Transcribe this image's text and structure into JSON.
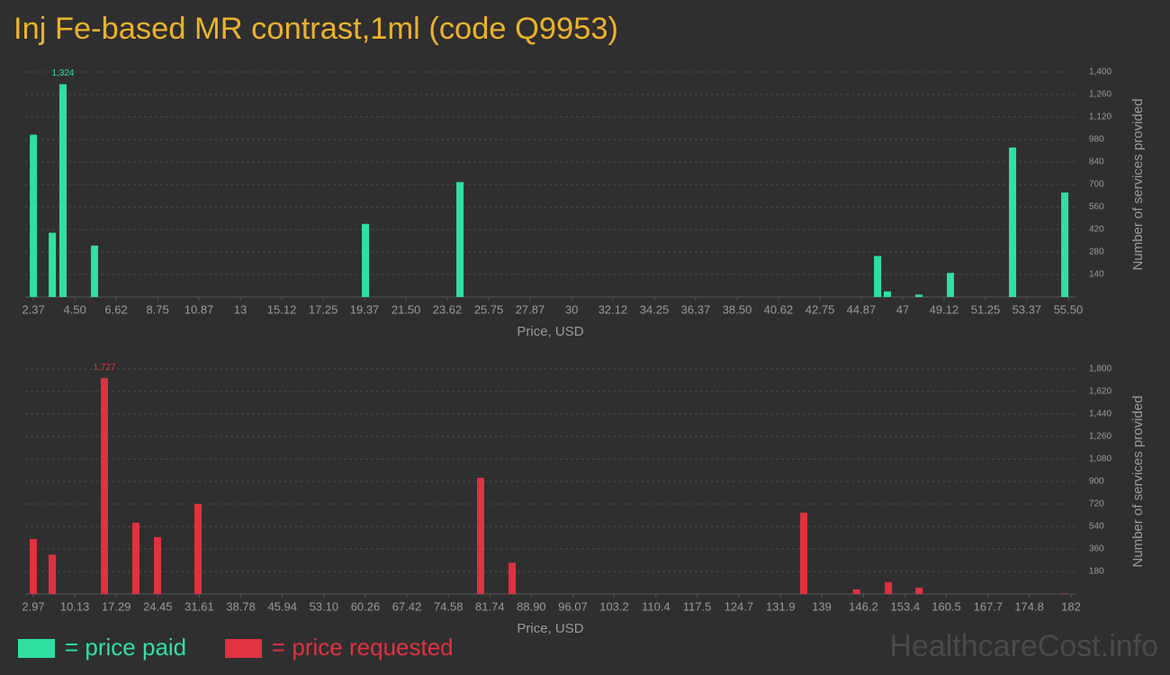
{
  "title": "Inj Fe-based MR contrast,1ml (code Q9953)",
  "watermark": "HealthcareCost.info",
  "chart_data": [
    {
      "type": "bar",
      "xlabel": "Price, USD",
      "ylabel": "Number of services provided",
      "x": [
        2.37,
        3.34,
        3.89,
        5.51,
        19.42,
        24.27,
        45.71,
        46.21,
        47.83,
        49.45,
        52.64,
        55.32
      ],
      "series": [
        {
          "name": "= price paid",
          "color": "#2fe0a0",
          "values": [
            1010,
            400,
            1324,
            320,
            455,
            715,
            255,
            35,
            15,
            150,
            930,
            650
          ],
          "value_labels": [
            null,
            null,
            "1,324",
            null,
            null,
            null,
            null,
            null,
            null,
            null,
            null,
            null
          ]
        }
      ],
      "xlim": [
        1.95,
        55.87
      ],
      "xticks": [
        2.37,
        {
          "value": 4.5,
          "label": "4.50"
        },
        6.62,
        8.75,
        10.87,
        13,
        15.12,
        17.25,
        19.37,
        {
          "value": 21.5,
          "label": "21.50"
        },
        23.62,
        25.75,
        27.87,
        30,
        32.12,
        34.25,
        36.37,
        {
          "value": 38.5,
          "label": "38.50"
        },
        40.62,
        42.75,
        44.87,
        47,
        49.12,
        51.25,
        53.37,
        {
          "value": 55.5,
          "label": "55.50"
        }
      ],
      "ylim": [
        0,
        1400
      ],
      "yticks": [
        140,
        280,
        420,
        560,
        700,
        840,
        980,
        {
          "value": 1120,
          "label": "1,120"
        },
        {
          "value": 1260,
          "label": "1,260"
        },
        {
          "value": 1400,
          "label": "1,400"
        }
      ],
      "grid": true
    },
    {
      "type": "bar",
      "xlabel": "Price, USD",
      "ylabel": "Number of services provided",
      "x": [
        2.97,
        6.23,
        15.24,
        20.67,
        24.4,
        31.39,
        80.14,
        85.58,
        135.89,
        145.0,
        150.5,
        155.8,
        180.9
      ],
      "series": [
        {
          "name": "= price requested",
          "color": "#e0323f",
          "values": [
            440,
            315,
            1727,
            570,
            455,
            720,
            930,
            250,
            650,
            36,
            95,
            50,
            5
          ],
          "value_labels": [
            null,
            null,
            "1,727",
            null,
            null,
            null,
            null,
            null,
            null,
            null,
            null,
            null,
            null
          ]
        }
      ],
      "xlim": [
        1.57,
        182.78
      ],
      "xticks": [
        2.97,
        10.13,
        17.29,
        24.45,
        31.61,
        38.78,
        45.94,
        {
          "value": 53.1,
          "label": "53.10"
        },
        60.26,
        67.42,
        74.58,
        81.74,
        {
          "value": 88.9,
          "label": "88.90"
        },
        96.07,
        103.2,
        110.4,
        117.5,
        124.7,
        131.9,
        139,
        146.2,
        153.4,
        160.5,
        167.7,
        174.8,
        182
      ],
      "ylim": [
        0,
        1800
      ],
      "yticks": [
        180,
        360,
        540,
        720,
        900,
        {
          "value": 1080,
          "label": "1,080"
        },
        {
          "value": 1260,
          "label": "1,260"
        },
        {
          "value": 1440,
          "label": "1,440"
        },
        {
          "value": 1620,
          "label": "1,620"
        },
        {
          "value": 1800,
          "label": "1,800"
        }
      ],
      "grid": true
    }
  ]
}
